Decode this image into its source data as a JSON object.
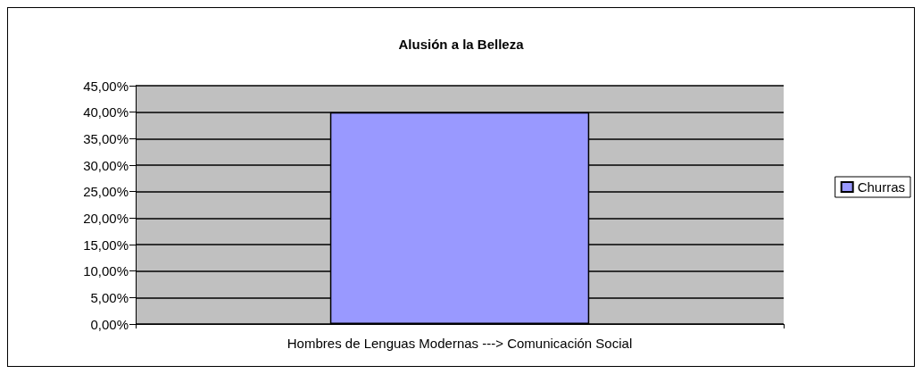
{
  "chart_data": {
    "type": "bar",
    "title": "Alusión a la Belleza",
    "categories": [
      "Hombres de Lenguas Modernas ---> Comunicación Social"
    ],
    "series": [
      {
        "name": "Churras",
        "color": "#9999ff",
        "values": [
          40
        ]
      }
    ],
    "ylim": [
      0,
      45
    ],
    "yticks": [
      {
        "value": 0,
        "label": "0,00%"
      },
      {
        "value": 5,
        "label": "5,00%"
      },
      {
        "value": 10,
        "label": "10,00%"
      },
      {
        "value": 15,
        "label": "15,00%"
      },
      {
        "value": 20,
        "label": "20,00%"
      },
      {
        "value": 25,
        "label": "25,00%"
      },
      {
        "value": 30,
        "label": "30,00%"
      },
      {
        "value": 35,
        "label": "35,00%"
      },
      {
        "value": 40,
        "label": "40,00%"
      },
      {
        "value": 45,
        "label": "45,00%"
      }
    ],
    "grid": "y",
    "legend": "right"
  }
}
